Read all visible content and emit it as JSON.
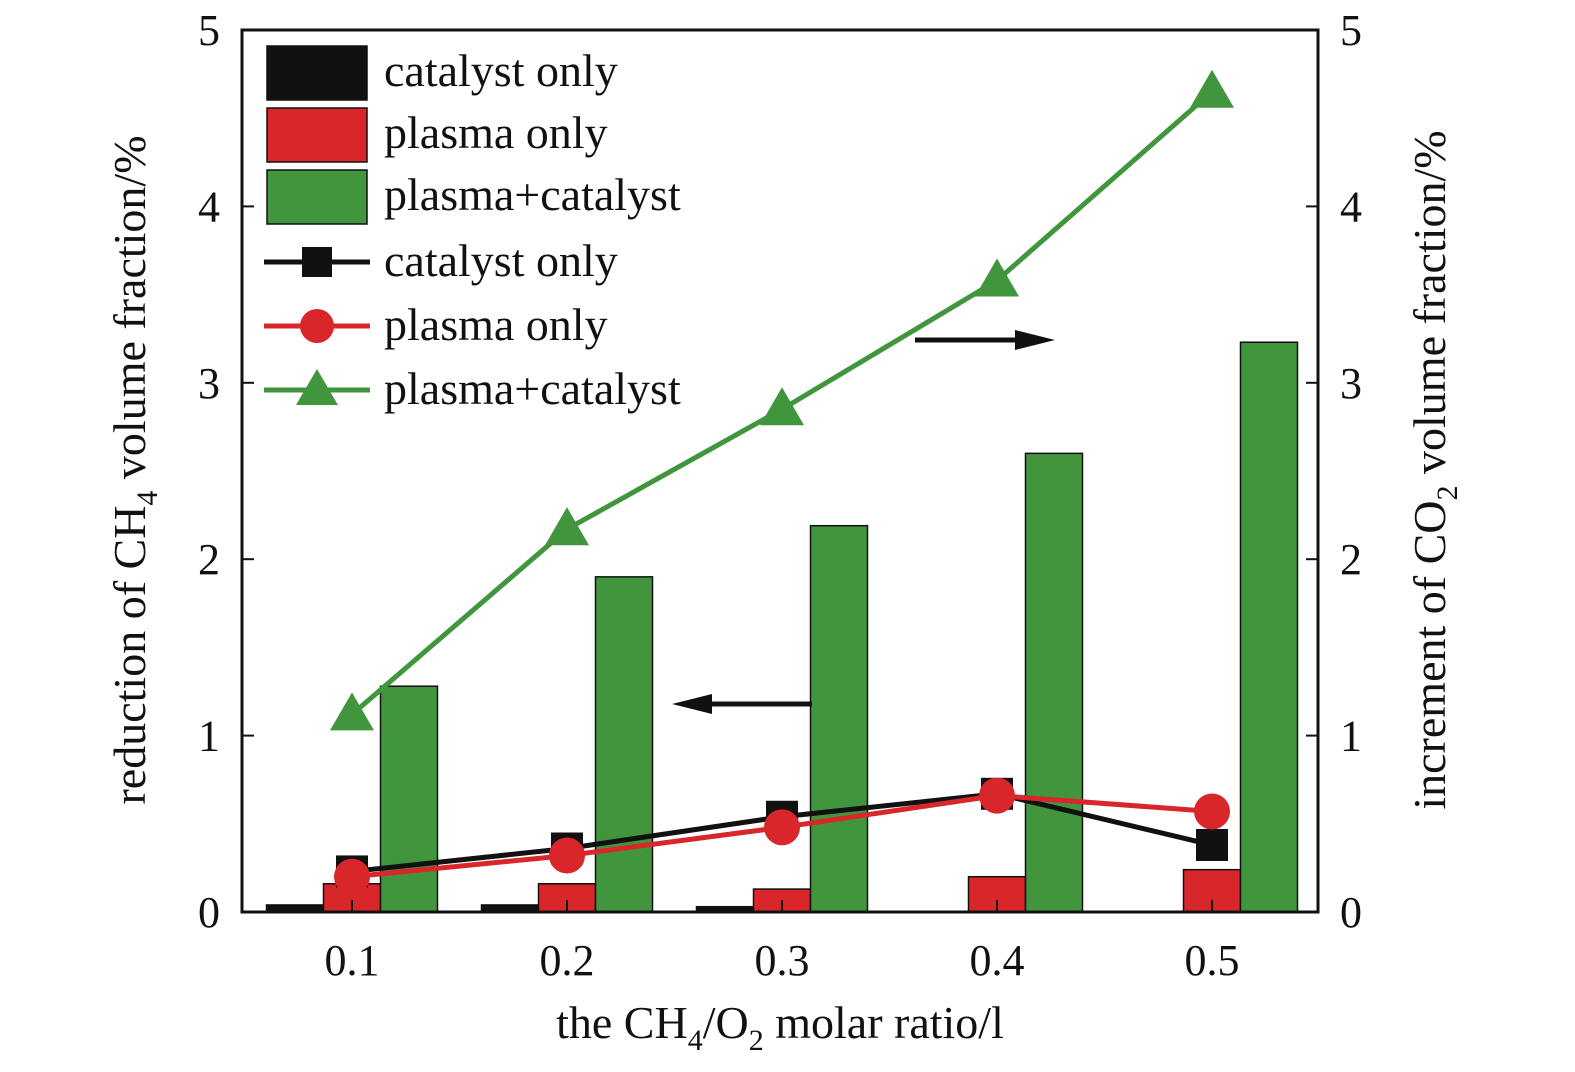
{
  "chart_data": {
    "type": "bar+line",
    "title": "",
    "xlabel": {
      "pre": "the CH",
      "sub1": "4",
      "mid": "/O",
      "sub2": "2",
      "post": " molar ratio/l"
    },
    "ylabel_left": {
      "pre": "reduction of CH",
      "sub": "4",
      "post": " volume fraction/%"
    },
    "ylabel_right": {
      "pre": "increment of CO",
      "sub": "2",
      "post": " volume fraction/%"
    },
    "categories": [
      "0.1",
      "0.2",
      "0.3",
      "0.4",
      "0.5"
    ],
    "ylim_left": [
      0,
      5
    ],
    "ylim_right": [
      0,
      5
    ],
    "yticks_left": [
      "0",
      "1",
      "2",
      "3",
      "4",
      "5"
    ],
    "yticks_right": [
      "0",
      "1",
      "2",
      "3",
      "4",
      "5"
    ],
    "legend_position": "top-left",
    "bar_series": [
      {
        "name": "catalyst only",
        "axis": "left",
        "color": "#111111",
        "values": [
          0.04,
          0.04,
          0.03,
          0,
          0
        ]
      },
      {
        "name": "plasma only",
        "axis": "left",
        "color": "#d9262b",
        "values": [
          0.16,
          0.16,
          0.13,
          0.2,
          0.24
        ]
      },
      {
        "name": "plasma+catalyst",
        "axis": "left",
        "color": "#41963d",
        "values": [
          1.28,
          1.9,
          2.19,
          2.6,
          3.23
        ]
      }
    ],
    "line_series": [
      {
        "name": "catalyst only",
        "axis": "right",
        "color": "#111111",
        "marker": "square",
        "values": [
          0.23,
          0.36,
          0.54,
          0.67,
          0.38
        ]
      },
      {
        "name": "plasma only",
        "axis": "right",
        "color": "#d9262b",
        "marker": "circle",
        "values": [
          0.2,
          0.32,
          0.48,
          0.66,
          0.57
        ]
      },
      {
        "name": "plasma+catalyst",
        "axis": "right",
        "color": "#41963d",
        "marker": "triangle",
        "values": [
          1.12,
          2.17,
          2.85,
          3.58,
          4.65
        ]
      }
    ],
    "annotations": [
      "arrow pointing left toward left axis (bars)",
      "arrow pointing right toward right axis (lines)"
    ]
  }
}
